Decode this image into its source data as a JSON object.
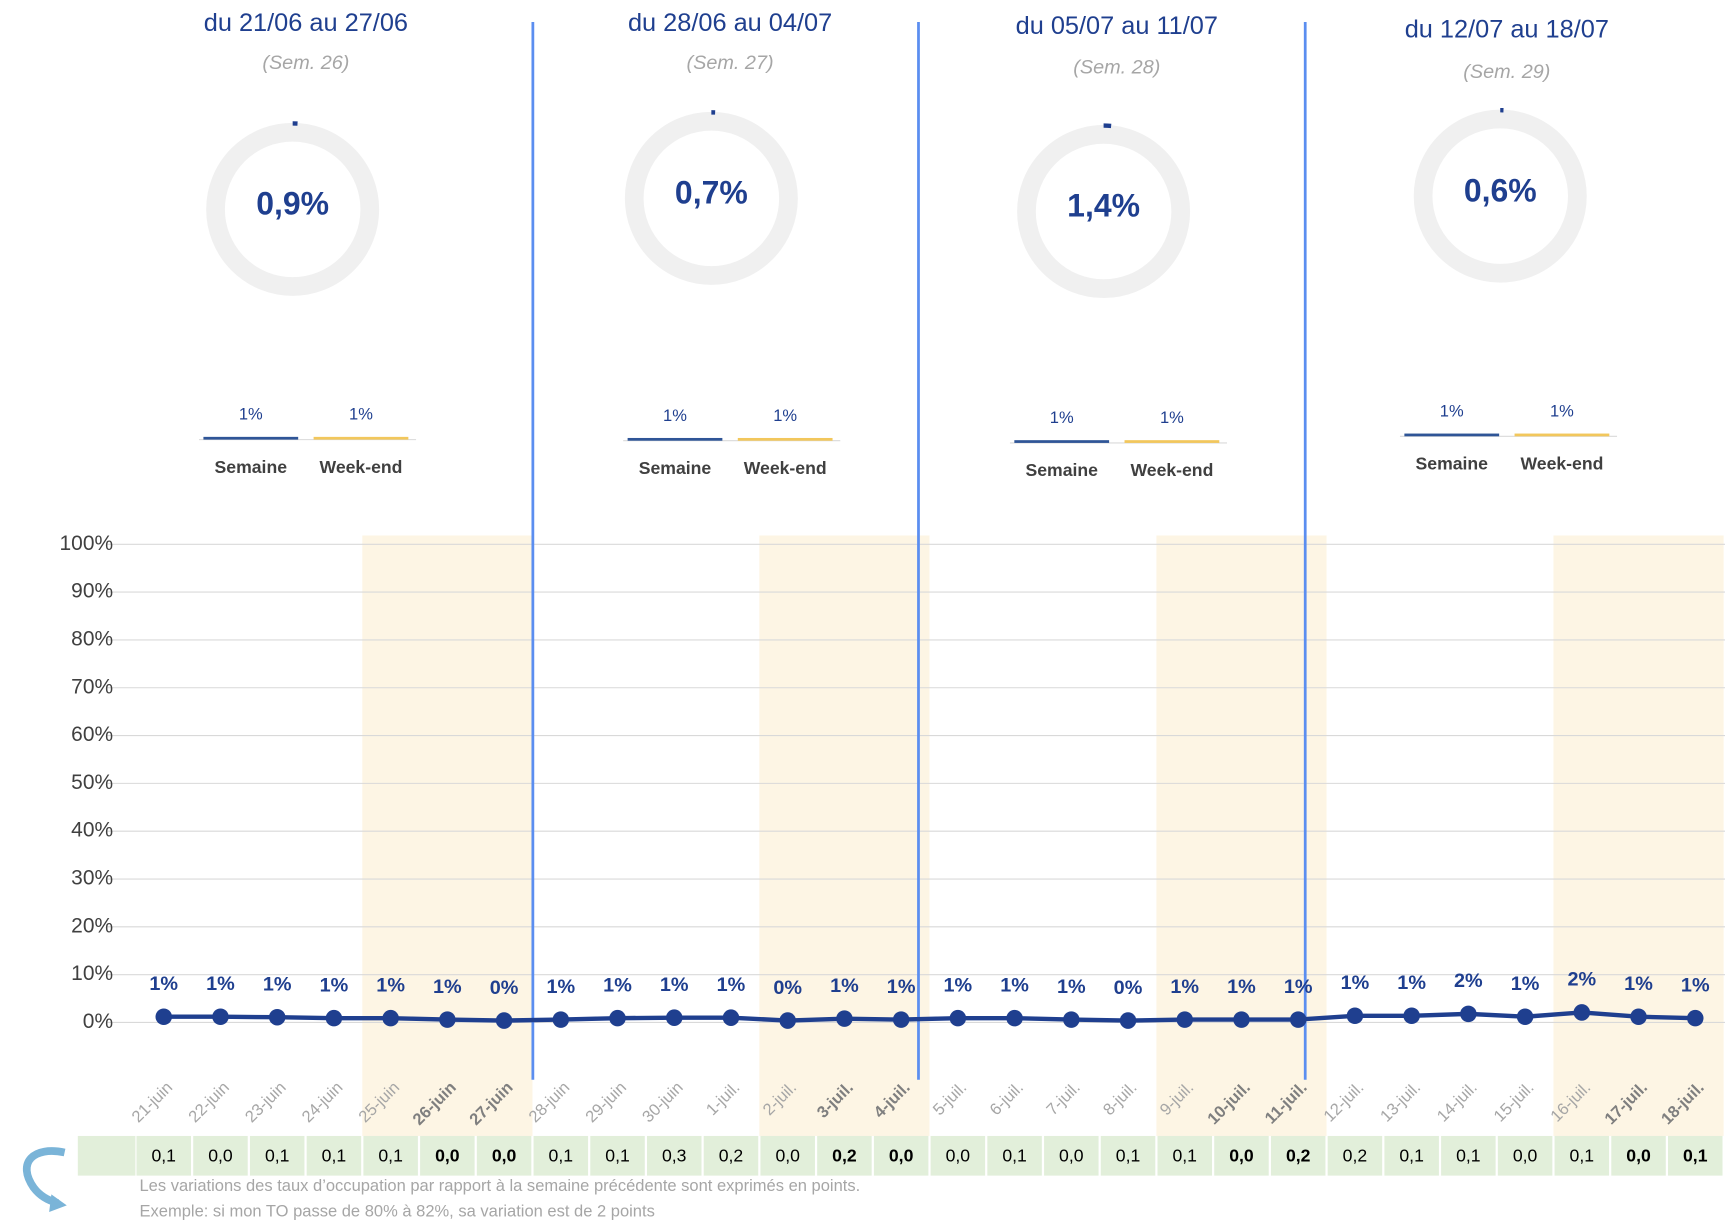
{
  "weeks": [
    {
      "title": "du 21/06 au 27/06",
      "subtitle": "(Sem. 26)",
      "rate": 0.9,
      "rate_label": "0,9%",
      "bars": {
        "categories": [
          "Semaine",
          "Week-end"
        ],
        "values": [
          1,
          1
        ],
        "value_labels": [
          "1%",
          "1%"
        ]
      }
    },
    {
      "title": "du 28/06 au 04/07",
      "subtitle": "(Sem. 27)",
      "rate": 0.7,
      "rate_label": "0,7%",
      "bars": {
        "categories": [
          "Semaine",
          "Week-end"
        ],
        "values": [
          1,
          1
        ],
        "value_labels": [
          "1%",
          "1%"
        ]
      }
    },
    {
      "title": "du 05/07 au 11/07",
      "subtitle": "(Sem. 28)",
      "rate": 1.4,
      "rate_label": "1,4%",
      "bars": {
        "categories": [
          "Semaine",
          "Week-end"
        ],
        "values": [
          1,
          1
        ],
        "value_labels": [
          "1%",
          "1%"
        ]
      }
    },
    {
      "title": "du 12/07 au 18/07",
      "subtitle": "(Sem. 29)",
      "rate": 0.6,
      "rate_label": "0,6%",
      "bars": {
        "categories": [
          "Semaine",
          "Week-end"
        ],
        "values": [
          1,
          1
        ],
        "value_labels": [
          "1%",
          "1%"
        ]
      }
    }
  ],
  "bar_colors": [
    "#2f5597",
    "#f2c75c"
  ],
  "chart_data": {
    "type": "line",
    "categories": [
      "21-juin",
      "22-juin",
      "23-juin",
      "24-juin",
      "25-juin",
      "26-juin",
      "27-juin",
      "28-juin",
      "29-juin",
      "30-juin",
      "1-juil.",
      "2-juil.",
      "3-juil.",
      "4-juil.",
      "5-juil.",
      "6-juil.",
      "7-juil.",
      "8-juil.",
      "9-juil.",
      "10-juil.",
      "11-juil.",
      "12-juil.",
      "13-juil.",
      "14-juil.",
      "15-juil.",
      "16-juil.",
      "17-juil.",
      "18-juil."
    ],
    "series": [
      {
        "color": "#1f3f8f",
        "values": [
          1.2,
          1.2,
          1.1,
          0.9,
          0.9,
          0.6,
          0.4,
          0.6,
          0.9,
          1.0,
          1.0,
          0.4,
          0.8,
          0.6,
          0.9,
          0.9,
          0.6,
          0.4,
          0.6,
          0.6,
          0.6,
          1.4,
          1.4,
          1.8,
          1.2,
          2.1,
          1.2,
          0.9
        ],
        "value_labels": [
          "1%",
          "1%",
          "1%",
          "1%",
          "1%",
          "1%",
          "0%",
          "1%",
          "1%",
          "1%",
          "1%",
          "0%",
          "1%",
          "1%",
          "1%",
          "1%",
          "1%",
          "0%",
          "1%",
          "1%",
          "1%",
          "1%",
          "1%",
          "2%",
          "1%",
          "2%",
          "1%",
          "1%"
        ]
      }
    ],
    "ylim": [
      0,
      100
    ],
    "yticks": [
      {
        "value": 0,
        "label": "0%"
      },
      {
        "value": 10,
        "label": "10%"
      },
      {
        "value": 20,
        "label": "20%"
      },
      {
        "value": 30,
        "label": "30%"
      },
      {
        "value": 40,
        "label": "40%"
      },
      {
        "value": 50,
        "label": "50%"
      },
      {
        "value": 60,
        "label": "60%"
      },
      {
        "value": 70,
        "label": "70%"
      },
      {
        "value": 80,
        "label": "80%"
      },
      {
        "value": 90,
        "label": "90%"
      },
      {
        "value": 100,
        "label": "100%"
      }
    ],
    "grid": true
  },
  "variations": [
    "0,1",
    "0,0",
    "0,1",
    "0,1",
    "0,1",
    "0,0",
    "0,0",
    "0,1",
    "0,1",
    "0,3",
    "0,2",
    "0,0",
    "0,2",
    "0,0",
    "0,0",
    "0,1",
    "0,0",
    "0,1",
    "0,1",
    "0,0",
    "0,2",
    "0,2",
    "0,1",
    "0,1",
    "0,0",
    "0,1",
    "0,0",
    "0,1"
  ],
  "notes": [
    "Les variations des taux d’occupation par rapport à la semaine précédente sont exprimés en points.",
    "Exemple: si mon TO passe de 80% à 82%, sa variation est de 2 points"
  ]
}
